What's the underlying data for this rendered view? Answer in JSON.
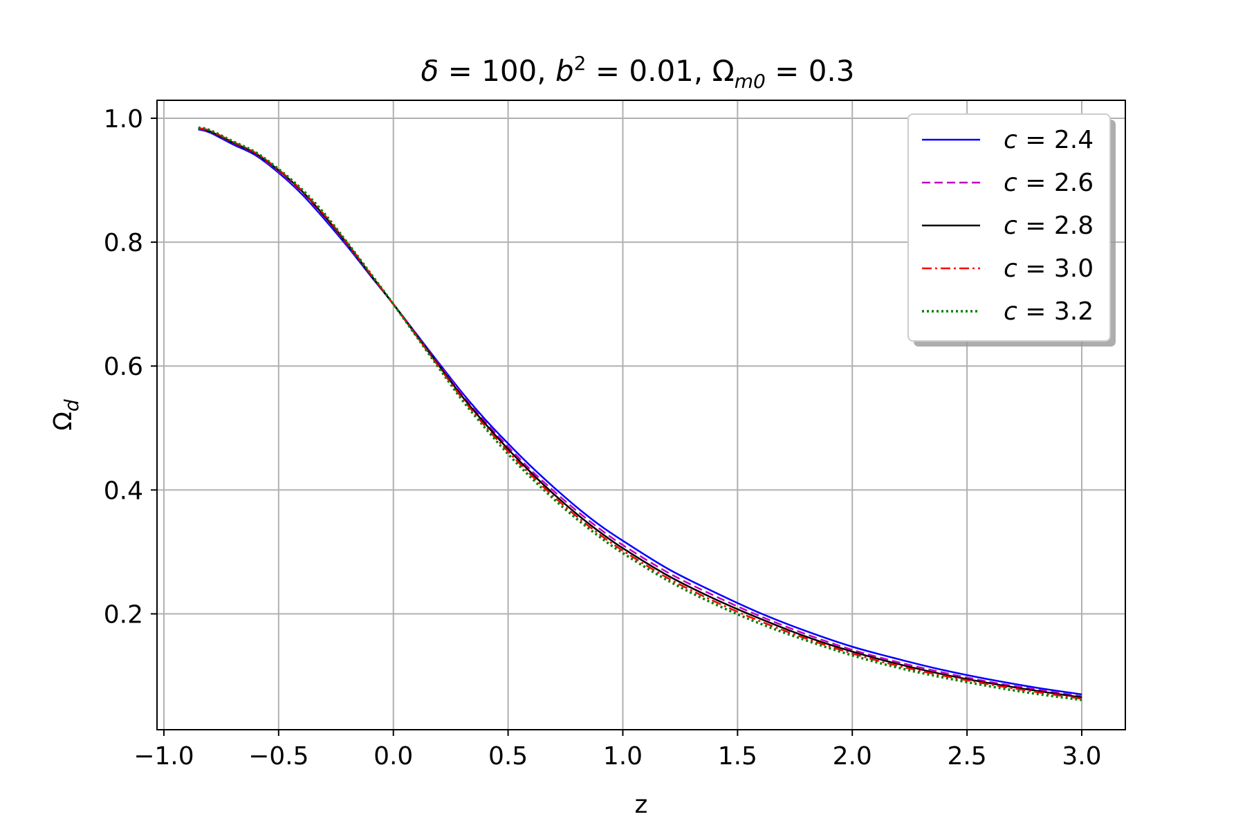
{
  "chart_data": {
    "type": "line",
    "title_parts": {
      "delta_sym": "δ",
      "delta_eq": " = 100, ",
      "b_sym": "b",
      "b_exp": "2",
      "b_eq": " = 0.01, ",
      "omega_sym": "Ω",
      "omega_sub": "m0",
      "omega_eq": " = 0.3"
    },
    "xlabel": "z",
    "ylabel": "Ω",
    "ylabel_sub": "d",
    "xlim": [
      -1.03,
      3.19
    ],
    "ylim": [
      0.013,
      1.029
    ],
    "xticks": [
      -1.0,
      -0.5,
      0.0,
      0.5,
      1.0,
      1.5,
      2.0,
      2.5,
      3.0
    ],
    "xtick_labels": [
      "−1.0",
      "−0.5",
      "0.0",
      "0.5",
      "1.0",
      "1.5",
      "2.0",
      "2.5",
      "3.0"
    ],
    "yticks": [
      0.2,
      0.4,
      0.6,
      0.8,
      1.0
    ],
    "ytick_labels": [
      "0.2",
      "0.4",
      "0.6",
      "0.8",
      "1.0"
    ],
    "grid": true,
    "legend_position": "top-right",
    "x": [
      -0.85,
      -0.8,
      -0.7,
      -0.6,
      -0.5,
      -0.4,
      -0.3,
      -0.2,
      -0.1,
      0.0,
      0.1,
      0.2,
      0.3,
      0.4,
      0.5,
      0.6,
      0.7,
      0.8,
      0.9,
      1.0,
      1.2,
      1.4,
      1.6,
      1.8,
      2.0,
      2.2,
      2.4,
      2.6,
      2.8,
      3.0
    ],
    "series": [
      {
        "name": "c = 2.4",
        "label_var": "c",
        "label_val": " = 2.4",
        "color": "#0000ff",
        "dash": "solid",
        "values": [
          0.982,
          0.977,
          0.958,
          0.94,
          0.912,
          0.878,
          0.837,
          0.793,
          0.746,
          0.7,
          0.652,
          0.604,
          0.557,
          0.514,
          0.475,
          0.438,
          0.404,
          0.372,
          0.343,
          0.318,
          0.272,
          0.235,
          0.201,
          0.172,
          0.147,
          0.127,
          0.109,
          0.094,
          0.081,
          0.07
        ]
      },
      {
        "name": "c = 2.6",
        "label_var": "c",
        "label_val": " = 2.6",
        "color": "#bf00bf",
        "dash": "dashed",
        "values": [
          0.983,
          0.978,
          0.96,
          0.942,
          0.914,
          0.881,
          0.84,
          0.795,
          0.747,
          0.7,
          0.651,
          0.602,
          0.554,
          0.51,
          0.47,
          0.432,
          0.398,
          0.366,
          0.337,
          0.311,
          0.266,
          0.229,
          0.196,
          0.167,
          0.142,
          0.122,
          0.105,
          0.09,
          0.078,
          0.067
        ]
      },
      {
        "name": "c = 2.8",
        "label_var": "c",
        "label_val": " = 2.8",
        "color": "#000000",
        "dash": "solid",
        "values": [
          0.984,
          0.979,
          0.961,
          0.943,
          0.916,
          0.883,
          0.842,
          0.797,
          0.748,
          0.7,
          0.65,
          0.6,
          0.551,
          0.507,
          0.466,
          0.428,
          0.393,
          0.361,
          0.332,
          0.306,
          0.261,
          0.224,
          0.192,
          0.163,
          0.139,
          0.119,
          0.102,
          0.088,
          0.076,
          0.065
        ]
      },
      {
        "name": "c = 3.0",
        "label_var": "c",
        "label_val": " = 3.0",
        "color": "#ff0000",
        "dash": "dashdot",
        "values": [
          0.984,
          0.98,
          0.962,
          0.944,
          0.917,
          0.884,
          0.844,
          0.798,
          0.749,
          0.7,
          0.649,
          0.598,
          0.548,
          0.503,
          0.462,
          0.424,
          0.389,
          0.357,
          0.328,
          0.302,
          0.257,
          0.22,
          0.188,
          0.16,
          0.136,
          0.116,
          0.1,
          0.086,
          0.074,
          0.063
        ]
      },
      {
        "name": "c = 3.2",
        "label_var": "c",
        "label_val": " = 3.2",
        "color": "#007f00",
        "dash": "dotted",
        "values": [
          0.985,
          0.981,
          0.963,
          0.945,
          0.918,
          0.886,
          0.846,
          0.799,
          0.75,
          0.7,
          0.648,
          0.596,
          0.545,
          0.5,
          0.458,
          0.42,
          0.385,
          0.353,
          0.324,
          0.298,
          0.253,
          0.216,
          0.184,
          0.157,
          0.133,
          0.113,
          0.097,
          0.083,
          0.071,
          0.061
        ]
      }
    ]
  }
}
